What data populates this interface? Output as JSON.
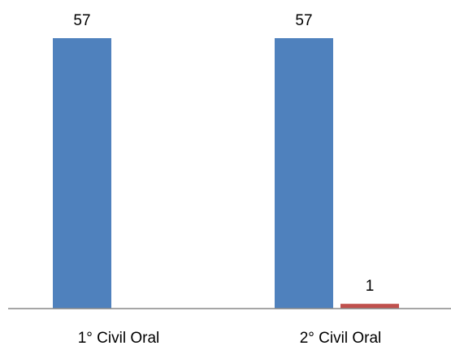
{
  "chart_data": {
    "type": "bar",
    "categories": [
      "1° Civil Oral",
      "2° Civil Oral"
    ],
    "series": [
      {
        "values": [
          57,
          57
        ],
        "color": "#4F81BD"
      },
      {
        "values": [
          null,
          1
        ],
        "color": "#C0504D"
      }
    ],
    "data_labels": [
      "57",
      "57",
      "1"
    ],
    "ylim": [
      0,
      57
    ],
    "grid": false,
    "legend": "none",
    "axis_color": "#888888"
  }
}
